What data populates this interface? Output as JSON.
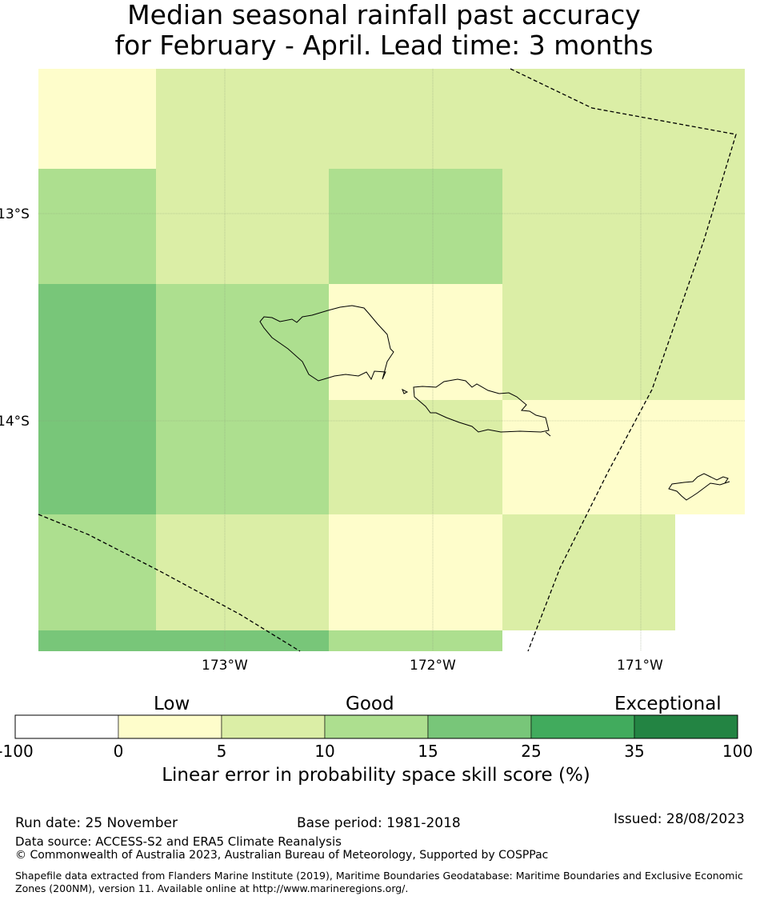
{
  "title": {
    "line1": "Median seasonal rainfall past accuracy",
    "line2": "for February - April. Lead time: 3 months"
  },
  "map": {
    "lat_labels": [
      "13°S",
      "14°S"
    ],
    "lon_labels": [
      "173°W",
      "172°W",
      "171°W"
    ],
    "grid_cells": [
      {
        "row": 0,
        "col": 0,
        "category": "0-5"
      },
      {
        "row": 0,
        "col": 1,
        "category": "5-10"
      },
      {
        "row": 0,
        "col": 2,
        "category": "5-10"
      },
      {
        "row": 0,
        "col": 3,
        "category": "5-10"
      },
      {
        "row": 0,
        "col": 4,
        "category": "5-10"
      },
      {
        "row": 1,
        "col": 0,
        "category": "10-15"
      },
      {
        "row": 1,
        "col": 1,
        "category": "5-10"
      },
      {
        "row": 1,
        "col": 2,
        "category": "10-15"
      },
      {
        "row": 1,
        "col": 3,
        "category": "5-10"
      },
      {
        "row": 1,
        "col": 4,
        "category": "5-10"
      },
      {
        "row": 2,
        "col": 0,
        "category": "15-25"
      },
      {
        "row": 2,
        "col": 1,
        "category": "10-15"
      },
      {
        "row": 2,
        "col": 2,
        "category": "0-5"
      },
      {
        "row": 2,
        "col": 3,
        "category": "5-10"
      },
      {
        "row": 2,
        "col": 4,
        "category": "5-10"
      },
      {
        "row": 3,
        "col": 0,
        "category": "15-25"
      },
      {
        "row": 3,
        "col": 1,
        "category": "10-15"
      },
      {
        "row": 3,
        "col": 2,
        "category": "5-10"
      },
      {
        "row": 3,
        "col": 3,
        "category": "0-5"
      },
      {
        "row": 3,
        "col": 4,
        "category": "0-5"
      },
      {
        "row": 4,
        "col": 0,
        "category": "10-15"
      },
      {
        "row": 4,
        "col": 1,
        "category": "5-10"
      },
      {
        "row": 4,
        "col": 2,
        "category": "0-5"
      },
      {
        "row": 4,
        "col": 3,
        "category": "5-10"
      },
      {
        "row": 5,
        "col": 0,
        "category": "15-25"
      },
      {
        "row": 5,
        "col": 1,
        "category": "15-25"
      },
      {
        "row": 5,
        "col": 2,
        "category": "10-15"
      }
    ]
  },
  "colorbar": {
    "words": {
      "low": "Low",
      "good": "Good",
      "exceptional": "Exceptional"
    },
    "ticks": [
      "-100",
      "0",
      "5",
      "10",
      "15",
      "25",
      "35",
      "100"
    ],
    "colors": [
      "#ffffff",
      "#fefdcb",
      "#dbeea6",
      "#addf8f",
      "#78c679",
      "#41ab5d",
      "#238443"
    ],
    "label": "Linear error in probability space skill score (%)"
  },
  "category_colors": {
    "0-5": "#fefdcb",
    "5-10": "#dbeea6",
    "10-15": "#addf8f",
    "15-25": "#78c679"
  },
  "footer": {
    "run_date": "Run date: 25 November",
    "base_period": "Base period: 1981-2018",
    "issued": "Issued: 28/08/2023",
    "data_source": "Data source: ACCESS-S2 and ERA5 Climate Reanalysis",
    "copyright": "© Commonwealth of Australia 2023, Australian Bureau of Meteorology, Supported by COSPPac",
    "shapefile": "Shapefile data extracted from Flanders Marine Institute (2019), Maritime Boundaries Geodatabase: Maritime Boundaries and Exclusive Economic Zones (200NM), version 11. Available online at http://www.marineregions.org/."
  }
}
